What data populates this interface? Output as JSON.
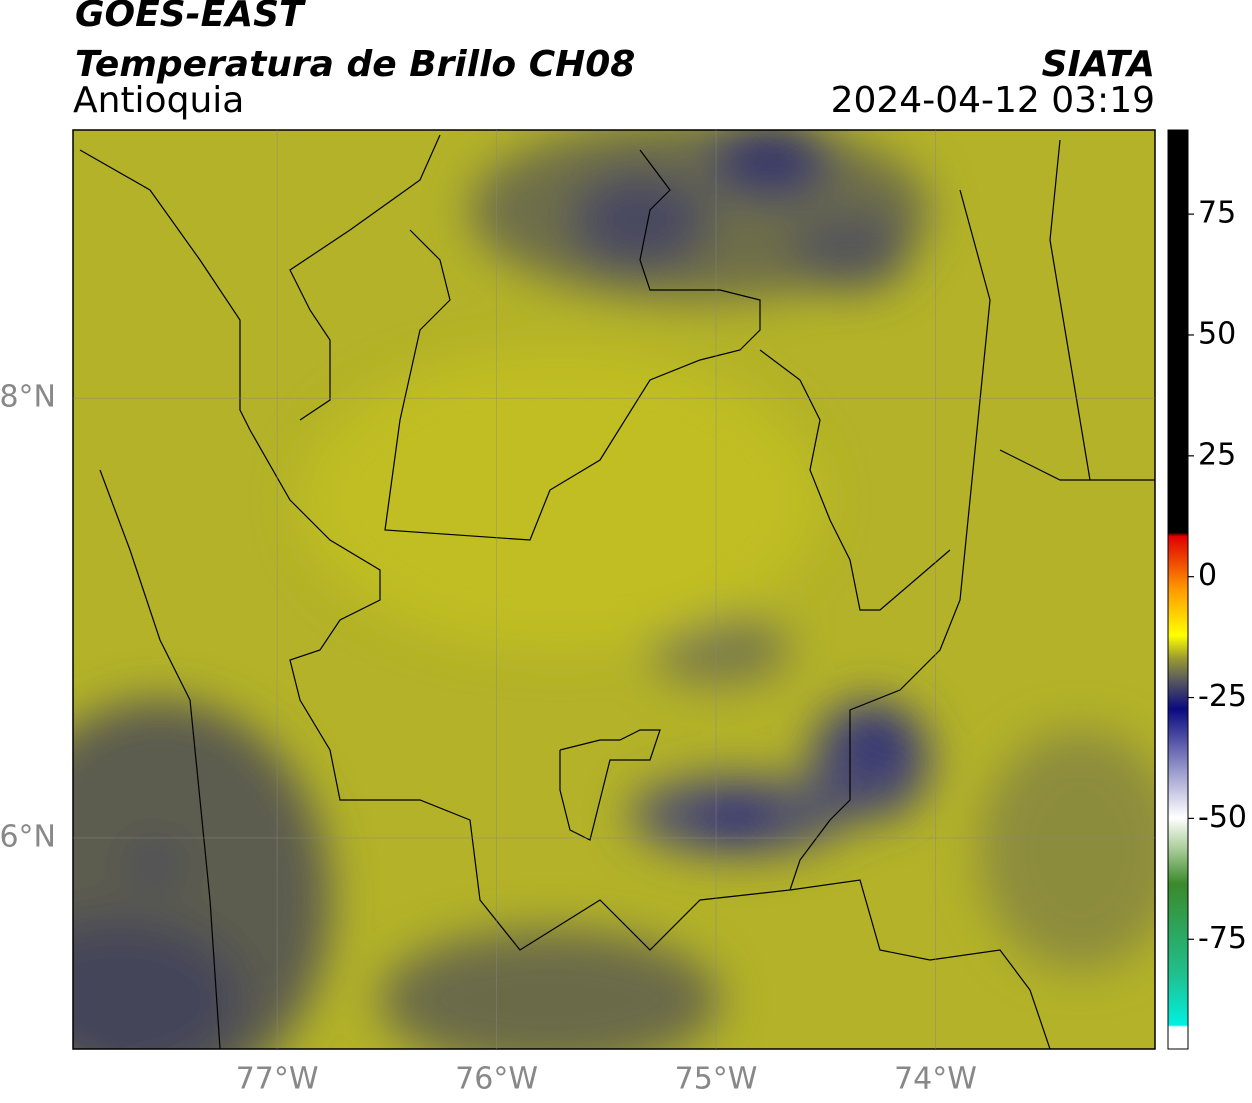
{
  "header": {
    "title": "GOES-EAST",
    "subtitle": "Temperatura de Brillo CH08",
    "region": "Antioquia",
    "source": "SIATA",
    "timestamp": "2024-04-12 03:19"
  },
  "map": {
    "lonlim": [
      -77.93,
      -73.0
    ],
    "latlim": [
      5.04,
      9.22
    ],
    "grid": true,
    "xticks": [
      {
        "value": -77,
        "label": "77°W"
      },
      {
        "value": -76,
        "label": "76°W"
      },
      {
        "value": -75,
        "label": "75°W"
      },
      {
        "value": -74,
        "label": "74°W"
      }
    ],
    "yticks": [
      {
        "value": 8,
        "label": "8°N"
      },
      {
        "value": 6,
        "label": "6°N"
      }
    ]
  },
  "colorbar": {
    "lim": [
      -97.7,
      92.4
    ],
    "ticks": [
      75,
      50,
      25,
      0,
      -25,
      -50,
      -75
    ]
  }
}
